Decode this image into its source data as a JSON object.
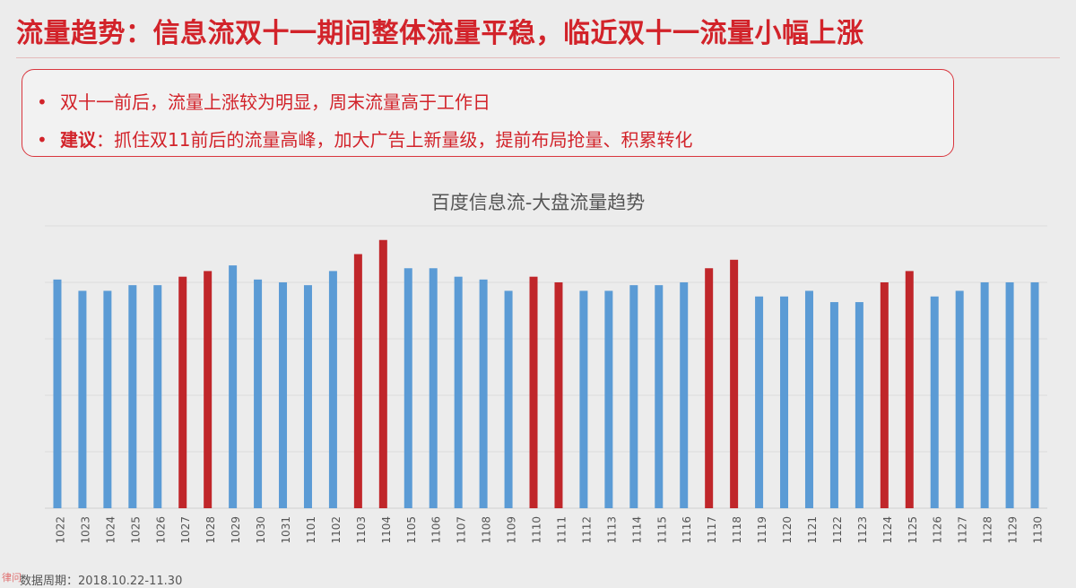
{
  "header": {
    "title": "流量趋势：信息流双十一期间整体流量平稳，临近双十一流量小幅上涨"
  },
  "notes": {
    "bullet": "•",
    "line1": "双十一前后，流量上涨较为明显，周末流量高于工作日",
    "line2_label": "建议",
    "line2_text": "：抓住双11前后的流量高峰，加大广告上新量级，提前布局抢量、积累转化"
  },
  "chart_data": {
    "type": "bar",
    "title": "百度信息流-大盘流量趋势",
    "xlabel": "",
    "ylabel": "",
    "grid": true,
    "y_axis_labels_shown": false,
    "ylim": [
      0,
      100
    ],
    "colors": {
      "normal": "#5b9bd5",
      "highlight": "#c0262a"
    },
    "categories": [
      "1022",
      "1023",
      "1024",
      "1025",
      "1026",
      "1027",
      "1028",
      "1029",
      "1030",
      "1031",
      "1101",
      "1102",
      "1103",
      "1104",
      "1105",
      "1106",
      "1107",
      "1108",
      "1109",
      "1110",
      "1111",
      "1112",
      "1113",
      "1114",
      "1115",
      "1116",
      "1117",
      "1118",
      "1119",
      "1120",
      "1121",
      "1122",
      "1123",
      "1124",
      "1125",
      "1126",
      "1127",
      "1128",
      "1129",
      "1130"
    ],
    "values": [
      81,
      77,
      77,
      79,
      79,
      82,
      84,
      86,
      81,
      80,
      79,
      84,
      90,
      95,
      85,
      85,
      82,
      81,
      77,
      82,
      80,
      77,
      77,
      79,
      79,
      80,
      85,
      88,
      75,
      75,
      77,
      73,
      73,
      80,
      84,
      75,
      77,
      80,
      80,
      80
    ],
    "highlight": [
      false,
      false,
      false,
      false,
      false,
      true,
      true,
      false,
      false,
      false,
      false,
      false,
      true,
      true,
      false,
      false,
      false,
      false,
      false,
      true,
      true,
      false,
      false,
      false,
      false,
      false,
      true,
      true,
      false,
      false,
      false,
      false,
      false,
      true,
      true,
      false,
      false,
      false,
      false,
      false
    ]
  },
  "footer": {
    "source_text": "数据周期：2018.10.22-11.30",
    "watermark": "律问"
  }
}
